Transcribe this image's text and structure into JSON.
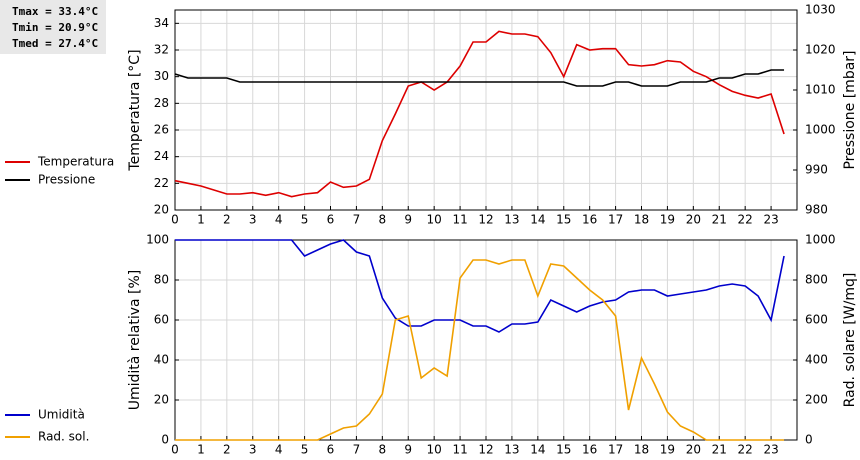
{
  "stats": [
    "Tmax = 33.4°C",
    "Tmin = 20.9°C",
    "Tmed = 27.4°C"
  ],
  "chart_data": [
    {
      "type": "line",
      "ylabel": "Temperatura [°C]",
      "y2label": "Pressione [mbar]",
      "x": [
        0,
        0.5,
        1,
        1.5,
        2,
        2.5,
        3,
        3.5,
        4,
        4.5,
        5,
        5.5,
        6,
        6.5,
        7,
        7.5,
        8,
        8.5,
        9,
        9.5,
        10,
        10.5,
        11,
        11.5,
        12,
        12.5,
        13,
        13.5,
        14,
        14.5,
        15,
        15.5,
        16,
        16.5,
        17,
        17.5,
        18,
        18.5,
        19,
        19.5,
        20,
        20.5,
        21,
        21.5,
        22,
        22.5,
        23,
        23.5
      ],
      "xlim": [
        0,
        24
      ],
      "xticks": [
        0,
        1,
        2,
        3,
        4,
        5,
        6,
        7,
        8,
        9,
        10,
        11,
        12,
        13,
        14,
        15,
        16,
        17,
        18,
        19,
        20,
        21,
        22,
        23
      ],
      "ylim": [
        20,
        35
      ],
      "yticks": [
        20,
        22,
        24,
        26,
        28,
        30,
        32,
        34
      ],
      "y2lim": [
        980,
        1030
      ],
      "y2ticks": [
        980,
        990,
        1000,
        1010,
        1020,
        1030
      ],
      "grid": true,
      "series": [
        {
          "name": "Temperatura",
          "color": "#dd0000",
          "values": [
            22.2,
            22.0,
            21.8,
            21.5,
            21.2,
            21.2,
            21.3,
            21.1,
            21.3,
            21.0,
            21.2,
            21.3,
            22.1,
            21.7,
            21.8,
            22.3,
            25.2,
            27.2,
            29.3,
            29.6,
            29.0,
            29.6,
            30.8,
            32.6,
            32.6,
            33.4,
            33.2,
            33.2,
            33.0,
            31.8,
            30.0,
            32.4,
            32.0,
            32.1,
            32.1,
            30.9,
            30.8,
            30.9,
            31.2,
            31.1,
            30.4,
            30.0,
            29.4,
            28.9,
            28.6,
            28.4,
            28.7,
            25.7
          ]
        },
        {
          "name": "Pressione",
          "color": "#000000",
          "axis": "y2",
          "values": [
            1014,
            1013,
            1013,
            1013,
            1013,
            1012,
            1012,
            1012,
            1012,
            1012,
            1012,
            1012,
            1012,
            1012,
            1012,
            1012,
            1012,
            1012,
            1012,
            1012,
            1012,
            1012,
            1012,
            1012,
            1012,
            1012,
            1012,
            1012,
            1012,
            1012,
            1012,
            1011,
            1011,
            1011,
            1012,
            1012,
            1011,
            1011,
            1011,
            1012,
            1012,
            1012,
            1013,
            1013,
            1014,
            1014,
            1015,
            1015
          ]
        }
      ]
    },
    {
      "type": "line",
      "ylabel": "Umidità relativa [%]",
      "y2label": "Rad. solare [W/mq]",
      "x": [
        0,
        0.5,
        1,
        1.5,
        2,
        2.5,
        3,
        3.5,
        4,
        4.5,
        5,
        5.5,
        6,
        6.5,
        7,
        7.5,
        8,
        8.5,
        9,
        9.5,
        10,
        10.5,
        11,
        11.5,
        12,
        12.5,
        13,
        13.5,
        14,
        14.5,
        15,
        15.5,
        16,
        16.5,
        17,
        17.5,
        18,
        18.5,
        19,
        19.5,
        20,
        20.5,
        21,
        21.5,
        22,
        22.5,
        23,
        23.5
      ],
      "xlim": [
        0,
        24
      ],
      "xticks": [
        0,
        1,
        2,
        3,
        4,
        5,
        6,
        7,
        8,
        9,
        10,
        11,
        12,
        13,
        14,
        15,
        16,
        17,
        18,
        19,
        20,
        21,
        22,
        23
      ],
      "ylim": [
        0,
        100
      ],
      "yticks": [
        0,
        20,
        40,
        60,
        80,
        100
      ],
      "y2lim": [
        0,
        1000
      ],
      "y2ticks": [
        0,
        200,
        400,
        600,
        800,
        1000
      ],
      "grid": true,
      "series": [
        {
          "name": "Umidità",
          "color": "#0000cc",
          "values": [
            100,
            100,
            100,
            100,
            100,
            100,
            100,
            100,
            100,
            100,
            92,
            95,
            98,
            100,
            94,
            92,
            71,
            61,
            57,
            57,
            60,
            60,
            60,
            57,
            57,
            54,
            58,
            58,
            59,
            70,
            67,
            64,
            67,
            69,
            70,
            74,
            75,
            75,
            72,
            73,
            74,
            75,
            77,
            78,
            77,
            72,
            60,
            92
          ]
        },
        {
          "name": "Rad. sol.",
          "color": "#f0a000",
          "axis": "y2",
          "values": [
            0,
            0,
            0,
            0,
            0,
            0,
            0,
            0,
            0,
            0,
            0,
            0,
            30,
            60,
            70,
            130,
            230,
            600,
            620,
            310,
            360,
            320,
            810,
            900,
            900,
            880,
            900,
            900,
            720,
            880,
            870,
            810,
            750,
            700,
            620,
            150,
            410,
            280,
            140,
            70,
            40,
            0,
            0,
            0,
            0,
            0,
            0,
            0
          ]
        }
      ]
    }
  ]
}
